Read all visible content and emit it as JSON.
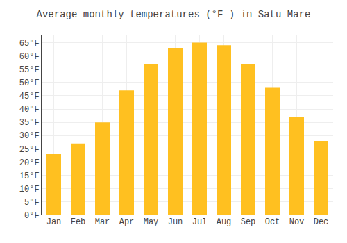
{
  "chart_data": {
    "type": "bar",
    "title": "Average monthly temperatures (°F ) in Satu Mare",
    "categories": [
      "Jan",
      "Feb",
      "Mar",
      "Apr",
      "May",
      "Jun",
      "Jul",
      "Aug",
      "Sep",
      "Oct",
      "Nov",
      "Dec"
    ],
    "values": [
      23,
      27,
      35,
      47,
      57,
      63,
      65,
      64,
      57,
      48,
      37,
      28
    ],
    "color": "#FFC020",
    "ylim": [
      0,
      68
    ],
    "yticks": [
      {
        "value": 0,
        "label": "0°F"
      },
      {
        "value": 5,
        "label": "5°F"
      },
      {
        "value": 10,
        "label": "10°F"
      },
      {
        "value": 15,
        "label": "15°F"
      },
      {
        "value": 20,
        "label": "20°F"
      },
      {
        "value": 25,
        "label": "25°F"
      },
      {
        "value": 30,
        "label": "30°F"
      },
      {
        "value": 35,
        "label": "35°F"
      },
      {
        "value": 40,
        "label": "40°F"
      },
      {
        "value": 45,
        "label": "45°F"
      },
      {
        "value": 50,
        "label": "50°F"
      },
      {
        "value": 55,
        "label": "55°F"
      },
      {
        "value": 60,
        "label": "60°F"
      },
      {
        "value": 65,
        "label": "65°F"
      }
    ],
    "grid": true
  }
}
